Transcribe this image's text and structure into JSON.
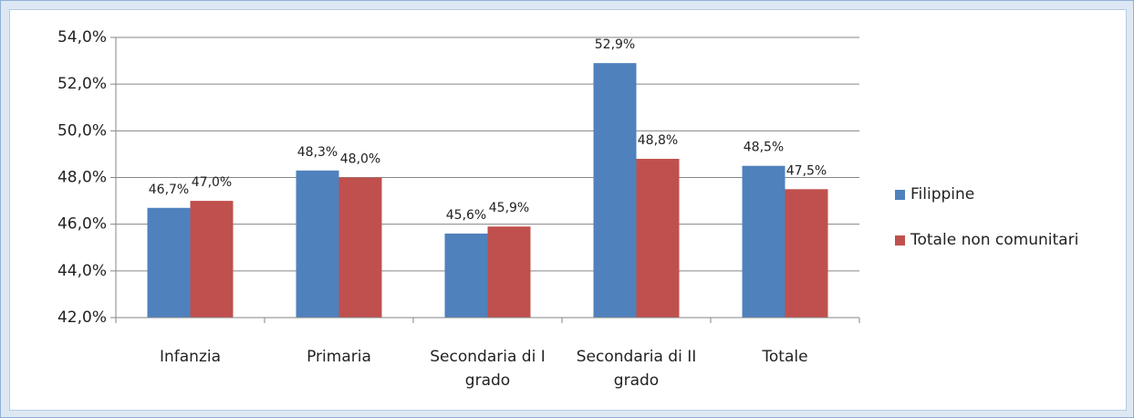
{
  "chart_data": {
    "type": "bar",
    "categories": [
      "Infanzia",
      "Primaria",
      "Secondaria di I grado",
      "Secondaria di II grado",
      "Totale"
    ],
    "series": [
      {
        "name": "Filippine",
        "color": "#4f81bd",
        "values": [
          46.7,
          48.3,
          45.6,
          52.9,
          48.5
        ],
        "value_labels": [
          "46,7%",
          "48,3%",
          "45,6%",
          "52,9%",
          "48,5%"
        ]
      },
      {
        "name": "Totale non comunitari",
        "color": "#c0504d",
        "values": [
          47.0,
          48.0,
          45.9,
          48.8,
          47.5
        ],
        "value_labels": [
          "47,0%",
          "48,0%",
          "45,9%",
          "48,8%",
          "47,5%"
        ]
      }
    ],
    "ylim": [
      42,
      54
    ],
    "yticks": [
      {
        "value": 42,
        "label": "42,0%"
      },
      {
        "value": 44,
        "label": "44,0%"
      },
      {
        "value": 46,
        "label": "46,0%"
      },
      {
        "value": 48,
        "label": "48,0%"
      },
      {
        "value": 50,
        "label": "50,0%"
      },
      {
        "value": 52,
        "label": "52,0%"
      },
      {
        "value": 54,
        "label": "54,0%"
      }
    ],
    "grid": true,
    "legend": "right"
  }
}
